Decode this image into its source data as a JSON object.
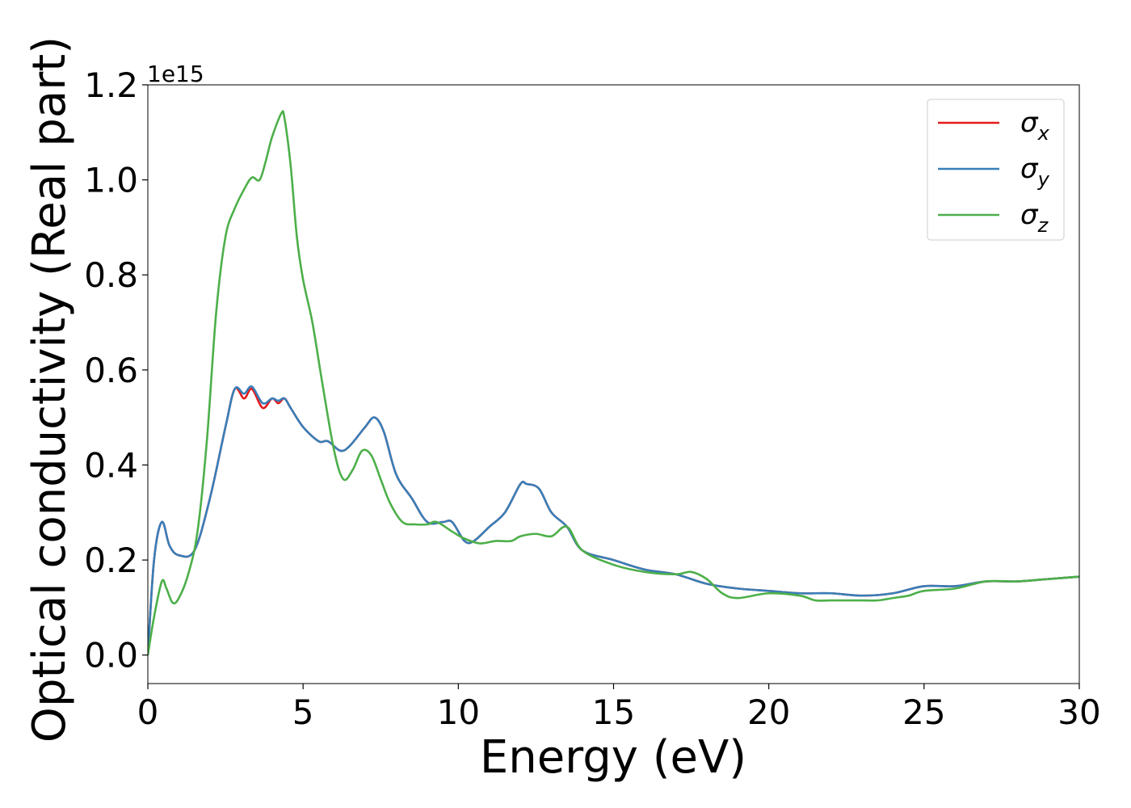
{
  "chart_data": {
    "type": "line",
    "xlabel": "Energy (eV)",
    "ylabel": "Optical conductivity (Real part)",
    "y_offset_label": "1e15",
    "xlim": [
      0,
      30
    ],
    "ylim": [
      -0.06,
      1.2
    ],
    "y_scale": 1000000000000000.0,
    "xticks": [
      "0",
      "5",
      "10",
      "15",
      "20",
      "25",
      "30"
    ],
    "yticks": [
      "0.0",
      "0.2",
      "0.4",
      "0.6",
      "0.8",
      "1.0",
      "1.2"
    ],
    "grid": false,
    "legend_position": "upper right",
    "series": [
      {
        "name": "σ",
        "subscript": "x",
        "color": "#e41a1c",
        "x": [
          0,
          0.2,
          0.45,
          0.7,
          1.0,
          1.5,
          2.0,
          2.5,
          2.8,
          3.1,
          3.35,
          3.7,
          4.0,
          4.2,
          4.4,
          4.6,
          5.0,
          5.5,
          5.8,
          6.2,
          6.5,
          7.0,
          7.3,
          7.6,
          8.0,
          8.5,
          9.0,
          9.5,
          9.8,
          10.2,
          10.5,
          11.0,
          11.5,
          12.0,
          12.2,
          12.6,
          13.0,
          13.5,
          14.0,
          15.0,
          16.0,
          17.0,
          18.0,
          19.0,
          20.0,
          21.0,
          22.0,
          23.0,
          24.0,
          25.0,
          26.0,
          27.0,
          28.0,
          29.0,
          30.0
        ],
        "y": [
          0.0,
          0.2,
          0.28,
          0.23,
          0.21,
          0.22,
          0.33,
          0.48,
          0.56,
          0.54,
          0.56,
          0.52,
          0.54,
          0.53,
          0.54,
          0.52,
          0.48,
          0.45,
          0.45,
          0.43,
          0.44,
          0.48,
          0.5,
          0.47,
          0.38,
          0.33,
          0.28,
          0.28,
          0.28,
          0.24,
          0.24,
          0.27,
          0.3,
          0.36,
          0.36,
          0.35,
          0.3,
          0.27,
          0.22,
          0.2,
          0.18,
          0.17,
          0.15,
          0.14,
          0.135,
          0.13,
          0.13,
          0.125,
          0.13,
          0.145,
          0.145,
          0.155,
          0.155,
          0.16,
          0.165
        ]
      },
      {
        "name": "σ",
        "subscript": "y",
        "color": "#377eb8",
        "x": [
          0,
          0.2,
          0.45,
          0.7,
          1.0,
          1.5,
          2.0,
          2.5,
          2.8,
          3.1,
          3.35,
          3.7,
          4.0,
          4.2,
          4.4,
          4.6,
          5.0,
          5.5,
          5.8,
          6.2,
          6.5,
          7.0,
          7.3,
          7.6,
          8.0,
          8.5,
          9.0,
          9.5,
          9.8,
          10.2,
          10.5,
          11.0,
          11.5,
          12.0,
          12.2,
          12.6,
          13.0,
          13.5,
          14.0,
          15.0,
          16.0,
          17.0,
          18.0,
          19.0,
          20.0,
          21.0,
          22.0,
          23.0,
          24.0,
          25.0,
          26.0,
          27.0,
          28.0,
          29.0,
          30.0
        ],
        "y": [
          0.0,
          0.2,
          0.28,
          0.23,
          0.21,
          0.22,
          0.33,
          0.48,
          0.56,
          0.55,
          0.565,
          0.53,
          0.54,
          0.535,
          0.54,
          0.52,
          0.48,
          0.45,
          0.45,
          0.43,
          0.44,
          0.48,
          0.5,
          0.47,
          0.38,
          0.33,
          0.28,
          0.28,
          0.28,
          0.24,
          0.24,
          0.27,
          0.3,
          0.36,
          0.36,
          0.35,
          0.3,
          0.27,
          0.22,
          0.2,
          0.18,
          0.17,
          0.15,
          0.14,
          0.135,
          0.13,
          0.13,
          0.125,
          0.13,
          0.145,
          0.145,
          0.155,
          0.155,
          0.16,
          0.165
        ]
      },
      {
        "name": "σ",
        "subscript": "z",
        "color": "#4daf4a",
        "x": [
          0,
          0.2,
          0.45,
          0.6,
          0.8,
          1.0,
          1.3,
          1.6,
          1.9,
          2.2,
          2.5,
          2.8,
          3.1,
          3.35,
          3.6,
          3.8,
          4.0,
          4.3,
          4.4,
          4.6,
          4.8,
          5.0,
          5.3,
          5.6,
          6.0,
          6.3,
          6.6,
          6.9,
          7.2,
          7.5,
          7.8,
          8.2,
          8.6,
          9.0,
          9.3,
          9.8,
          10.2,
          10.7,
          11.2,
          11.7,
          12.0,
          12.5,
          13.0,
          13.5,
          14.0,
          15.0,
          16.0,
          17.0,
          17.5,
          18.0,
          18.5,
          19.0,
          20.0,
          21.0,
          21.5,
          22.0,
          23.0,
          23.5,
          24.0,
          24.5,
          25.0,
          26.0,
          27.0,
          28.0,
          29.0,
          30.0
        ],
        "y": [
          0.0,
          0.08,
          0.155,
          0.14,
          0.11,
          0.12,
          0.17,
          0.26,
          0.45,
          0.72,
          0.88,
          0.94,
          0.98,
          1.005,
          1.0,
          1.04,
          1.09,
          1.14,
          1.13,
          1.03,
          0.88,
          0.79,
          0.7,
          0.58,
          0.43,
          0.37,
          0.39,
          0.43,
          0.42,
          0.37,
          0.32,
          0.28,
          0.275,
          0.275,
          0.28,
          0.26,
          0.245,
          0.235,
          0.24,
          0.24,
          0.25,
          0.255,
          0.25,
          0.27,
          0.22,
          0.19,
          0.175,
          0.17,
          0.175,
          0.16,
          0.13,
          0.12,
          0.13,
          0.125,
          0.115,
          0.115,
          0.115,
          0.115,
          0.12,
          0.125,
          0.135,
          0.14,
          0.155,
          0.155,
          0.16,
          0.165
        ]
      }
    ]
  }
}
